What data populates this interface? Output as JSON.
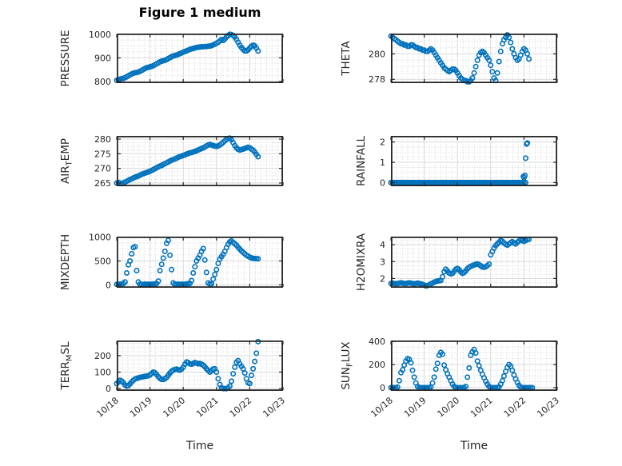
{
  "figure": {
    "colors": {
      "marker": "#0072BD",
      "axis": "#262626",
      "grid": "#d9d9d9",
      "minor_grid": "#cbcbcb",
      "background": "#ffffff",
      "title": "#000000"
    }
  },
  "chart_data": {
    "type": "scatter",
    "title": "Figure 1 medium",
    "marker": {
      "style": "open-circle",
      "color": "#0072BD"
    },
    "x_axis": {
      "label": "Time",
      "xlim_days": [
        0,
        5
      ],
      "ticks_days": [
        0,
        1,
        2,
        3,
        4,
        5
      ],
      "ticklabels": [
        "10/18",
        "10/19",
        "10/20",
        "10/21",
        "10/22",
        "10/23"
      ],
      "tick_label_rotation_deg": 40,
      "minor_step_days": 0.1667,
      "grid": "on",
      "minor_grid": "dotted"
    },
    "subplots": [
      {
        "name": "PRESSURE",
        "ylabel": "PRESSURE",
        "row": 1,
        "col": 1,
        "title": "Figure 1 medium",
        "yticks": [
          800,
          900,
          1000
        ],
        "ylim": [
          793,
          1003
        ],
        "yminor_step": 25,
        "t0": 0,
        "dt_days": 0.05,
        "y": [
          805,
          807,
          810,
          812,
          813,
          816,
          820,
          824,
          828,
          832,
          835,
          837,
          838,
          840,
          843,
          847,
          851,
          855,
          858,
          860,
          862,
          864,
          867,
          871,
          875,
          879,
          883,
          886,
          888,
          890,
          893,
          897,
          901,
          905,
          908,
          910,
          912,
          915,
          918,
          921,
          924,
          927,
          930,
          933,
          936,
          938,
          940,
          942,
          944,
          945,
          946,
          947,
          947,
          948,
          948,
          949,
          950,
          952,
          955,
          958,
          962,
          966,
          972,
          978,
          974,
          980,
          988,
          995,
          1000,
          999,
          995,
          988,
          978,
          966,
          954,
          944,
          936,
          930,
          929,
          934,
          942,
          949,
          954,
          951,
          941,
          929
        ]
      },
      {
        "name": "THETA",
        "ylabel": "THETA",
        "row": 1,
        "col": 2,
        "yticks": [
          278,
          280
        ],
        "ylim": [
          277.7,
          281.6
        ],
        "yminor_step": 0.5,
        "t0": 0,
        "dt_days": 0.05,
        "y": [
          281.4,
          281.3,
          281.2,
          281.1,
          281.0,
          280.9,
          280.8,
          280.8,
          280.7,
          280.7,
          280.6,
          280.6,
          280.7,
          280.7,
          280.6,
          280.5,
          280.5,
          280.4,
          280.4,
          280.3,
          280.3,
          280.2,
          280.2,
          280.3,
          280.4,
          280.3,
          280.1,
          279.9,
          279.7,
          279.5,
          279.3,
          279.1,
          278.9,
          278.8,
          278.7,
          278.6,
          278.7,
          278.8,
          278.8,
          278.7,
          278.5,
          278.3,
          278.1,
          278.0,
          277.9,
          277.9,
          277.8,
          277.8,
          277.9,
          278.1,
          278.5,
          279.0,
          279.5,
          279.9,
          280.1,
          280.2,
          280.1,
          279.9,
          279.7,
          279.5,
          279.1,
          278.6,
          278.1,
          277.9,
          278.5,
          279.4,
          280.2,
          280.8,
          281.1,
          281.3,
          281.5,
          281.3,
          280.9,
          280.4,
          280.0,
          279.7,
          279.5,
          279.6,
          279.9,
          280.2,
          280.4,
          280.3,
          280.0,
          279.6
        ]
      },
      {
        "name": "AIR_TEMP",
        "ylabel": "AIR_TEMP",
        "row": 2,
        "col": 1,
        "yticks": [
          265,
          270,
          275,
          280
        ],
        "ylim": [
          263.9,
          281.1
        ],
        "yminor_step": 1.25,
        "t0": 0,
        "dt_days": 0.05,
        "y": [
          265.0,
          265.2,
          265.0,
          264.8,
          265.0,
          265.3,
          265.6,
          265.9,
          266.2,
          266.4,
          266.7,
          267.0,
          267.2,
          267.4,
          267.7,
          268.0,
          268.2,
          268.4,
          268.6,
          268.8,
          269.0,
          269.3,
          269.6,
          269.9,
          270.2,
          270.5,
          270.8,
          271.0,
          271.3,
          271.6,
          271.9,
          272.2,
          272.5,
          272.8,
          273.0,
          273.2,
          273.5,
          273.8,
          274.0,
          274.2,
          274.4,
          274.6,
          274.9,
          275.1,
          275.3,
          275.4,
          275.6,
          275.8,
          276.0,
          276.3,
          276.5,
          276.8,
          277.0,
          277.3,
          277.7,
          278.0,
          278.2,
          278.0,
          277.8,
          277.6,
          277.5,
          277.7,
          278.0,
          278.4,
          278.9,
          279.4,
          279.9,
          280.2,
          280.3,
          279.8,
          278.8,
          277.8,
          277.0,
          276.5,
          276.3,
          276.4,
          276.6,
          276.8,
          277.0,
          277.2,
          277.0,
          276.6,
          276.2,
          275.6,
          274.8,
          274.0
        ]
      },
      {
        "name": "RAINFALL",
        "ylabel": "RAINFALL",
        "row": 2,
        "col": 2,
        "yticks": [
          0,
          1,
          2
        ],
        "ylim": [
          -0.18,
          2.3
        ],
        "yminor_step": 0.25,
        "t0": 0,
        "dt_days": 0.05,
        "y": [
          0,
          0,
          0,
          0,
          0,
          0,
          0,
          0,
          0,
          0,
          0,
          0,
          0,
          0,
          0,
          0,
          0,
          0,
          0,
          0,
          0,
          0,
          0,
          0,
          0,
          0,
          0,
          0,
          0,
          0,
          0,
          0,
          0,
          0,
          0,
          0,
          0,
          0,
          0,
          0,
          0,
          0,
          0,
          0,
          0,
          0,
          0,
          0,
          0,
          0,
          0,
          0,
          0,
          0,
          0,
          0,
          0,
          0,
          0,
          0,
          0,
          0,
          0,
          0,
          0,
          0,
          0,
          0,
          0,
          0,
          0,
          0,
          0,
          0,
          0,
          0,
          0,
          0,
          0,
          0,
          0,
          0
        ],
        "extra_points": {
          "x_days": [
            3.98,
            4.0,
            4.03,
            4.05,
            4.08,
            4.1
          ],
          "y": [
            0.3,
            0.25,
            0.35,
            1.2,
            1.9,
            1.95
          ]
        }
      },
      {
        "name": "MIXDEPTH",
        "ylabel": "MIXDEPTH",
        "row": 3,
        "col": 1,
        "yticks": [
          0,
          500,
          1000
        ],
        "ylim": [
          -60,
          1010
        ],
        "yminor_step": 125,
        "t0": 0,
        "dt_days": 0.05,
        "y": [
          10,
          15,
          10,
          20,
          30,
          60,
          250,
          420,
          500,
          650,
          780,
          800,
          300,
          60,
          15,
          10,
          10,
          15,
          10,
          15,
          10,
          15,
          20,
          20,
          25,
          80,
          300,
          430,
          560,
          700,
          870,
          930,
          620,
          320,
          40,
          15,
          10,
          15,
          10,
          15,
          10,
          15,
          20,
          25,
          30,
          90,
          250,
          380,
          500,
          560,
          620,
          700,
          760,
          520,
          260,
          40,
          15,
          20,
          120,
          220,
          320,
          450,
          540,
          590,
          640,
          700,
          780,
          850,
          900,
          920,
          890,
          860,
          830,
          790,
          750,
          710,
          680,
          650,
          620,
          600,
          580,
          565,
          555,
          550,
          548,
          545
        ]
      },
      {
        "name": "H2OMIXRA",
        "ylabel": "H2OMIXRA",
        "row": 3,
        "col": 2,
        "yticks": [
          2,
          3,
          4
        ],
        "ylim": [
          1.45,
          4.48
        ],
        "yminor_step": 0.25,
        "t0": 0,
        "dt_days": 0.05,
        "y": [
          1.7,
          1.72,
          1.7,
          1.68,
          1.7,
          1.72,
          1.74,
          1.72,
          1.7,
          1.7,
          1.72,
          1.74,
          1.72,
          1.7,
          1.68,
          1.7,
          1.72,
          1.7,
          1.68,
          1.65,
          1.6,
          1.56,
          1.58,
          1.62,
          1.68,
          1.72,
          1.78,
          1.82,
          1.85,
          1.86,
          1.88,
          2.1,
          2.4,
          2.55,
          2.45,
          2.32,
          2.28,
          2.3,
          2.42,
          2.55,
          2.6,
          2.52,
          2.38,
          2.3,
          2.35,
          2.45,
          2.58,
          2.66,
          2.72,
          2.76,
          2.8,
          2.84,
          2.86,
          2.82,
          2.75,
          2.68,
          2.66,
          2.7,
          2.76,
          2.85,
          3.4,
          3.6,
          3.8,
          3.95,
          4.05,
          4.15,
          4.25,
          4.2,
          4.1,
          4.02,
          3.98,
          4.05,
          4.12,
          4.18,
          4.1,
          4.05,
          4.15,
          4.22,
          4.28,
          4.25,
          4.2,
          4.25,
          4.3,
          4.32
        ]
      },
      {
        "name": "TERR_MSL",
        "ylabel": "TERR_MSL",
        "row": 4,
        "col": 1,
        "yticks": [
          0,
          100,
          200
        ],
        "ylim": [
          -14,
          292
        ],
        "yminor_step": 25,
        "t0": 0,
        "dt_days": 0.05,
        "y": [
          30,
          40,
          50,
          45,
          35,
          22,
          15,
          18,
          28,
          40,
          50,
          58,
          62,
          65,
          68,
          70,
          72,
          74,
          76,
          78,
          82,
          92,
          100,
          96,
          85,
          72,
          62,
          56,
          55,
          60,
          68,
          80,
          95,
          105,
          112,
          116,
          118,
          114,
          112,
          118,
          130,
          148,
          162,
          158,
          150,
          148,
          152,
          158,
          155,
          150,
          152,
          148,
          142,
          132,
          120,
          110,
          100,
          108,
          118,
          120,
          100,
          60,
          25,
          5,
          0,
          0,
          0,
          5,
          15,
          45,
          90,
          130,
          160,
          170,
          150,
          135,
          120,
          95,
          60,
          35,
          30,
          80,
          120,
          165,
          215,
          285
        ]
      },
      {
        "name": "SUN_FLUX",
        "ylabel": "SUN_FLUX",
        "row": 4,
        "col": 2,
        "yticks": [
          0,
          200,
          400
        ],
        "ylim": [
          -28,
          408
        ],
        "yminor_step": 50,
        "t0": 0,
        "dt_days": 0.05,
        "y": [
          0,
          0,
          0,
          0,
          5,
          60,
          130,
          155,
          195,
          230,
          250,
          245,
          215,
          150,
          90,
          40,
          10,
          0,
          0,
          0,
          0,
          0,
          0,
          0,
          5,
          40,
          90,
          160,
          210,
          280,
          305,
          290,
          195,
          155,
          120,
          90,
          60,
          30,
          10,
          0,
          0,
          0,
          0,
          0,
          0,
          10,
          90,
          170,
          280,
          310,
          330,
          300,
          230,
          190,
          150,
          115,
          85,
          55,
          30,
          10,
          0,
          0,
          0,
          0,
          0,
          5,
          30,
          60,
          100,
          140,
          175,
          200,
          185,
          150,
          110,
          75,
          45,
          20,
          5,
          0,
          0,
          0,
          0,
          0,
          0,
          0
        ]
      }
    ]
  }
}
